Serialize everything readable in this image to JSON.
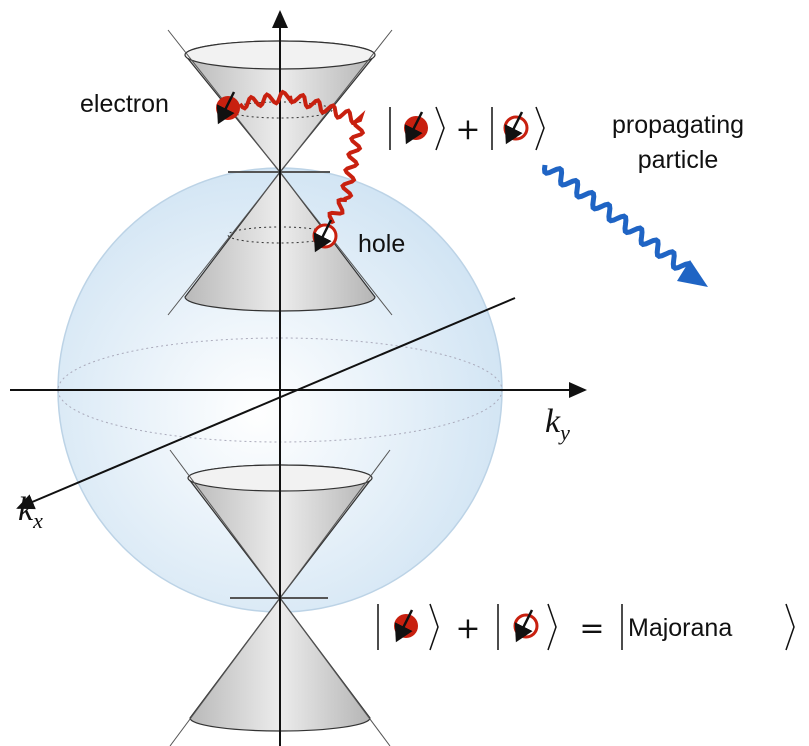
{
  "labels": {
    "electron": "electron",
    "hole": "hole",
    "propagating": [
      "propagating",
      "particle"
    ]
  },
  "axes": {
    "ky": {
      "base": "k",
      "sub": "y"
    },
    "kx": {
      "base": "k",
      "sub": "x"
    }
  },
  "equations": {
    "top": {
      "plus": "+"
    },
    "bottom": {
      "plus": "+",
      "equals": "=",
      "state": "Majorana"
    }
  }
}
